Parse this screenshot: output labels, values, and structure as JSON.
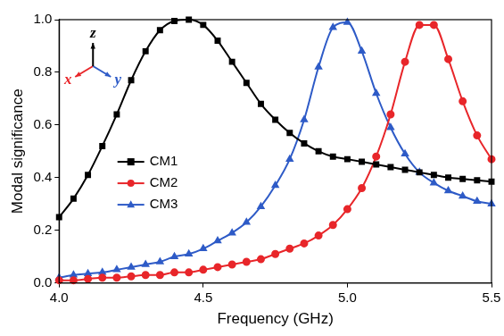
{
  "chart_data": {
    "type": "line",
    "x_label": "Frequency (GHz)",
    "y_label": "Modal significance",
    "x": [
      4.0,
      4.05,
      4.1,
      4.15,
      4.2,
      4.25,
      4.3,
      4.35,
      4.4,
      4.45,
      4.5,
      4.55,
      4.6,
      4.65,
      4.7,
      4.75,
      4.8,
      4.85,
      4.9,
      4.95,
      5.0,
      5.05,
      5.1,
      5.15,
      5.2,
      5.25,
      5.3,
      5.35,
      5.4,
      5.45,
      5.5
    ],
    "series": [
      {
        "name": "CM1",
        "color": "#000000",
        "marker": "square",
        "values": [
          0.25,
          0.32,
          0.41,
          0.52,
          0.64,
          0.77,
          0.88,
          0.96,
          0.995,
          1.0,
          0.98,
          0.92,
          0.84,
          0.76,
          0.68,
          0.62,
          0.57,
          0.53,
          0.5,
          0.48,
          0.47,
          0.46,
          0.45,
          0.44,
          0.43,
          0.42,
          0.41,
          0.4,
          0.395,
          0.39,
          0.385
        ]
      },
      {
        "name": "CM2",
        "color": "#e8262a",
        "marker": "circle",
        "values": [
          0.01,
          0.01,
          0.015,
          0.02,
          0.02,
          0.025,
          0.03,
          0.03,
          0.04,
          0.04,
          0.05,
          0.06,
          0.07,
          0.08,
          0.09,
          0.11,
          0.13,
          0.15,
          0.18,
          0.22,
          0.28,
          0.36,
          0.48,
          0.64,
          0.84,
          0.98,
          0.98,
          0.85,
          0.69,
          0.56,
          0.47
        ]
      },
      {
        "name": "CM3",
        "color": "#2e5bc7",
        "marker": "triangle",
        "values": [
          0.02,
          0.03,
          0.035,
          0.04,
          0.05,
          0.06,
          0.07,
          0.08,
          0.1,
          0.11,
          0.13,
          0.16,
          0.19,
          0.23,
          0.29,
          0.37,
          0.47,
          0.62,
          0.82,
          0.97,
          0.99,
          0.88,
          0.72,
          0.59,
          0.49,
          0.42,
          0.38,
          0.35,
          0.33,
          0.31,
          0.3
        ]
      }
    ],
    "xlim": [
      4,
      5.5
    ],
    "xticks": [
      {
        "value": 4,
        "label": "4.0"
      },
      {
        "value": 4.5,
        "label": "4.5"
      },
      {
        "value": 5,
        "label": "5.0"
      },
      {
        "value": 5.5,
        "label": "5.5"
      }
    ],
    "ylim": [
      0,
      1
    ],
    "yticks": [
      {
        "value": 0,
        "label": "0.0"
      },
      0.2,
      0.4,
      0.6,
      0.8,
      {
        "value": 1,
        "label": "1.0"
      }
    ],
    "grid": false,
    "legend": "left",
    "annotations": [
      {
        "text": "x",
        "color": "#e8262a"
      },
      {
        "text": "y",
        "color": "#2e5bc7"
      },
      {
        "text": "z",
        "color": "#000000"
      }
    ]
  }
}
